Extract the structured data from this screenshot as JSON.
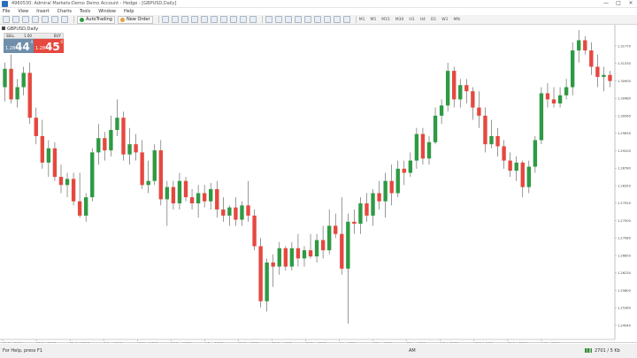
{
  "window": {
    "title": "4960530: Admiral Markets-Demo Demo Account - Hedge - [GBPUSD,Daily]",
    "controls": [
      "—",
      "□",
      "×"
    ]
  },
  "menu": [
    "File",
    "View",
    "Insert",
    "Charts",
    "Tools",
    "Window",
    "Help"
  ],
  "toolbar": {
    "algo_label": "AutoTrading",
    "neworder_label": "New Order",
    "timeframes": [
      "M1",
      "M5",
      "M15",
      "M30",
      "H1",
      "H4",
      "D1",
      "W1",
      "MN"
    ]
  },
  "chart": {
    "label": "GBPUSD,Daily",
    "trade_panel": {
      "sell_label": "SELL",
      "lot": "1.00",
      "buy_label": "BUY",
      "sell_small": "1.28",
      "sell_big": "44",
      "sell_sup": "4",
      "buy_small": "1.28",
      "buy_big": "45",
      "buy_sup": "0"
    }
  },
  "status": {
    "help": "For Help, press F1",
    "profile": "AM",
    "traffic": "2701 / 5 Kb"
  },
  "colors": {
    "bull": "#2e9a44",
    "bear": "#e5483f",
    "wick": "#555555"
  },
  "chart_data": {
    "type": "candlestick",
    "symbol": "GBPUSD",
    "timeframe": "Daily",
    "ylim": [
      1.245,
      1.32
    ],
    "y_ticks": [
      "1.31770",
      "1.31330",
      "1.30900",
      "1.30480",
      "1.30060",
      "1.29630",
      "1.29200",
      "1.28780",
      "1.28350",
      "1.27920",
      "1.27500",
      "1.27080",
      "1.26650",
      "1.26230",
      "1.25800",
      "1.25360",
      "1.24940"
    ],
    "x_ticks": [
      "15 Oct 2018",
      "23 Oct 2018",
      "31 Oct 2018",
      "8 Nov 2018",
      "16 Nov 2018",
      "26 Nov 2018",
      "4 Dec 2018",
      "12 Dec 2018",
      "20 Dec 2018",
      "31 Dec 2018",
      "9 Jan 2019",
      "17 Jan 2019",
      "25 Jan 2019",
      "5 Feb 2019",
      "13 Feb 2019",
      "21 Feb 2019",
      "1 Mar 2019"
    ],
    "candles": [
      {
        "o": 1.306,
        "h": 1.312,
        "l": 1.3025,
        "c": 1.3105
      },
      {
        "o": 1.3105,
        "h": 1.314,
        "l": 1.302,
        "c": 1.303
      },
      {
        "o": 1.303,
        "h": 1.308,
        "l": 1.301,
        "c": 1.306
      },
      {
        "o": 1.306,
        "h": 1.311,
        "l": 1.304,
        "c": 1.3095
      },
      {
        "o": 1.3095,
        "h": 1.312,
        "l": 1.297,
        "c": 1.2985
      },
      {
        "o": 1.2985,
        "h": 1.301,
        "l": 1.292,
        "c": 1.294
      },
      {
        "o": 1.294,
        "h": 1.298,
        "l": 1.286,
        "c": 1.2875
      },
      {
        "o": 1.2875,
        "h": 1.293,
        "l": 1.284,
        "c": 1.291
      },
      {
        "o": 1.291,
        "h": 1.2925,
        "l": 1.283,
        "c": 1.284
      },
      {
        "o": 1.284,
        "h": 1.287,
        "l": 1.28,
        "c": 1.282
      },
      {
        "o": 1.282,
        "h": 1.285,
        "l": 1.279,
        "c": 1.2835
      },
      {
        "o": 1.2835,
        "h": 1.285,
        "l": 1.277,
        "c": 1.278
      },
      {
        "o": 1.278,
        "h": 1.285,
        "l": 1.274,
        "c": 1.2745
      },
      {
        "o": 1.2745,
        "h": 1.28,
        "l": 1.273,
        "c": 1.279
      },
      {
        "o": 1.279,
        "h": 1.291,
        "l": 1.278,
        "c": 1.29
      },
      {
        "o": 1.29,
        "h": 1.297,
        "l": 1.287,
        "c": 1.2935
      },
      {
        "o": 1.2935,
        "h": 1.295,
        "l": 1.288,
        "c": 1.2905
      },
      {
        "o": 1.2905,
        "h": 1.299,
        "l": 1.289,
        "c": 1.2955
      },
      {
        "o": 1.2955,
        "h": 1.303,
        "l": 1.294,
        "c": 1.2985
      },
      {
        "o": 1.2985,
        "h": 1.3,
        "l": 1.288,
        "c": 1.2895
      },
      {
        "o": 1.2895,
        "h": 1.296,
        "l": 1.287,
        "c": 1.292
      },
      {
        "o": 1.292,
        "h": 1.2945,
        "l": 1.288,
        "c": 1.29
      },
      {
        "o": 1.29,
        "h": 1.293,
        "l": 1.281,
        "c": 1.282
      },
      {
        "o": 1.282,
        "h": 1.288,
        "l": 1.28,
        "c": 1.283
      },
      {
        "o": 1.283,
        "h": 1.292,
        "l": 1.282,
        "c": 1.2905
      },
      {
        "o": 1.2905,
        "h": 1.293,
        "l": 1.277,
        "c": 1.2785
      },
      {
        "o": 1.2785,
        "h": 1.283,
        "l": 1.272,
        "c": 1.2815
      },
      {
        "o": 1.2815,
        "h": 1.283,
        "l": 1.276,
        "c": 1.2775
      },
      {
        "o": 1.2775,
        "h": 1.285,
        "l": 1.276,
        "c": 1.283
      },
      {
        "o": 1.283,
        "h": 1.284,
        "l": 1.278,
        "c": 1.279
      },
      {
        "o": 1.279,
        "h": 1.281,
        "l": 1.276,
        "c": 1.2775
      },
      {
        "o": 1.2775,
        "h": 1.282,
        "l": 1.274,
        "c": 1.28
      },
      {
        "o": 1.28,
        "h": 1.282,
        "l": 1.2765,
        "c": 1.278
      },
      {
        "o": 1.278,
        "h": 1.2825,
        "l": 1.276,
        "c": 1.281
      },
      {
        "o": 1.281,
        "h": 1.283,
        "l": 1.274,
        "c": 1.276
      },
      {
        "o": 1.276,
        "h": 1.279,
        "l": 1.273,
        "c": 1.2745
      },
      {
        "o": 1.2745,
        "h": 1.277,
        "l": 1.272,
        "c": 1.2765
      },
      {
        "o": 1.2765,
        "h": 1.279,
        "l": 1.272,
        "c": 1.2735
      },
      {
        "o": 1.2735,
        "h": 1.278,
        "l": 1.272,
        "c": 1.277
      },
      {
        "o": 1.277,
        "h": 1.283,
        "l": 1.273,
        "c": 1.2745
      },
      {
        "o": 1.2745,
        "h": 1.276,
        "l": 1.266,
        "c": 1.267
      },
      {
        "o": 1.267,
        "h": 1.269,
        "l": 1.252,
        "c": 1.2535
      },
      {
        "o": 1.2535,
        "h": 1.264,
        "l": 1.251,
        "c": 1.263
      },
      {
        "o": 1.263,
        "h": 1.265,
        "l": 1.257,
        "c": 1.262
      },
      {
        "o": 1.262,
        "h": 1.268,
        "l": 1.26,
        "c": 1.2665
      },
      {
        "o": 1.2665,
        "h": 1.267,
        "l": 1.261,
        "c": 1.262
      },
      {
        "o": 1.262,
        "h": 1.268,
        "l": 1.261,
        "c": 1.2665
      },
      {
        "o": 1.2665,
        "h": 1.27,
        "l": 1.262,
        "c": 1.264
      },
      {
        "o": 1.264,
        "h": 1.267,
        "l": 1.262,
        "c": 1.266
      },
      {
        "o": 1.266,
        "h": 1.27,
        "l": 1.264,
        "c": 1.2645
      },
      {
        "o": 1.2645,
        "h": 1.27,
        "l": 1.263,
        "c": 1.2685
      },
      {
        "o": 1.2685,
        "h": 1.272,
        "l": 1.264,
        "c": 1.266
      },
      {
        "o": 1.266,
        "h": 1.276,
        "l": 1.265,
        "c": 1.272
      },
      {
        "o": 1.272,
        "h": 1.275,
        "l": 1.269,
        "c": 1.27
      },
      {
        "o": 1.27,
        "h": 1.279,
        "l": 1.26,
        "c": 1.2615
      },
      {
        "o": 1.2615,
        "h": 1.275,
        "l": 1.248,
        "c": 1.273
      },
      {
        "o": 1.273,
        "h": 1.276,
        "l": 1.27,
        "c": 1.2725
      },
      {
        "o": 1.2725,
        "h": 1.279,
        "l": 1.27,
        "c": 1.2775
      },
      {
        "o": 1.2775,
        "h": 1.28,
        "l": 1.273,
        "c": 1.2745
      },
      {
        "o": 1.2745,
        "h": 1.281,
        "l": 1.272,
        "c": 1.28
      },
      {
        "o": 1.28,
        "h": 1.283,
        "l": 1.276,
        "c": 1.278
      },
      {
        "o": 1.278,
        "h": 1.285,
        "l": 1.274,
        "c": 1.283
      },
      {
        "o": 1.283,
        "h": 1.287,
        "l": 1.277,
        "c": 1.28
      },
      {
        "o": 1.28,
        "h": 1.288,
        "l": 1.279,
        "c": 1.286
      },
      {
        "o": 1.286,
        "h": 1.288,
        "l": 1.282,
        "c": 1.285
      },
      {
        "o": 1.285,
        "h": 1.29,
        "l": 1.284,
        "c": 1.288
      },
      {
        "o": 1.288,
        "h": 1.296,
        "l": 1.286,
        "c": 1.2945
      },
      {
        "o": 1.2945,
        "h": 1.296,
        "l": 1.287,
        "c": 1.2885
      },
      {
        "o": 1.2885,
        "h": 1.294,
        "l": 1.287,
        "c": 1.2925
      },
      {
        "o": 1.2925,
        "h": 1.301,
        "l": 1.292,
        "c": 1.299
      },
      {
        "o": 1.299,
        "h": 1.303,
        "l": 1.297,
        "c": 1.3015
      },
      {
        "o": 1.3015,
        "h": 1.312,
        "l": 1.3,
        "c": 1.31
      },
      {
        "o": 1.31,
        "h": 1.311,
        "l": 1.301,
        "c": 1.303
      },
      {
        "o": 1.303,
        "h": 1.308,
        "l": 1.301,
        "c": 1.3065
      },
      {
        "o": 1.3065,
        "h": 1.308,
        "l": 1.302,
        "c": 1.305
      },
      {
        "o": 1.305,
        "h": 1.306,
        "l": 1.298,
        "c": 1.301
      },
      {
        "o": 1.301,
        "h": 1.305,
        "l": 1.296,
        "c": 1.299
      },
      {
        "o": 1.299,
        "h": 1.301,
        "l": 1.29,
        "c": 1.292
      },
      {
        "o": 1.292,
        "h": 1.298,
        "l": 1.291,
        "c": 1.294
      },
      {
        "o": 1.294,
        "h": 1.296,
        "l": 1.289,
        "c": 1.2915
      },
      {
        "o": 1.2915,
        "h": 1.293,
        "l": 1.286,
        "c": 1.288
      },
      {
        "o": 1.288,
        "h": 1.29,
        "l": 1.284,
        "c": 1.2855
      },
      {
        "o": 1.2855,
        "h": 1.289,
        "l": 1.283,
        "c": 1.2875
      },
      {
        "o": 1.2875,
        "h": 1.288,
        "l": 1.279,
        "c": 1.2815
      },
      {
        "o": 1.2815,
        "h": 1.288,
        "l": 1.28,
        "c": 1.2865
      },
      {
        "o": 1.2865,
        "h": 1.294,
        "l": 1.285,
        "c": 1.293
      },
      {
        "o": 1.293,
        "h": 1.306,
        "l": 1.292,
        "c": 1.3045
      },
      {
        "o": 1.3045,
        "h": 1.307,
        "l": 1.301,
        "c": 1.303
      },
      {
        "o": 1.303,
        "h": 1.306,
        "l": 1.301,
        "c": 1.302
      },
      {
        "o": 1.302,
        "h": 1.306,
        "l": 1.301,
        "c": 1.304
      },
      {
        "o": 1.304,
        "h": 1.308,
        "l": 1.303,
        "c": 1.306
      },
      {
        "o": 1.306,
        "h": 1.317,
        "l": 1.304,
        "c": 1.315
      },
      {
        "o": 1.315,
        "h": 1.32,
        "l": 1.312,
        "c": 1.3175
      },
      {
        "o": 1.3175,
        "h": 1.3185,
        "l": 1.314,
        "c": 1.315
      },
      {
        "o": 1.315,
        "h": 1.317,
        "l": 1.309,
        "c": 1.311
      },
      {
        "o": 1.311,
        "h": 1.314,
        "l": 1.306,
        "c": 1.3085
      },
      {
        "o": 1.3085,
        "h": 1.311,
        "l": 1.305,
        "c": 1.309
      },
      {
        "o": 1.309,
        "h": 1.31,
        "l": 1.306,
        "c": 1.3075
      }
    ]
  }
}
